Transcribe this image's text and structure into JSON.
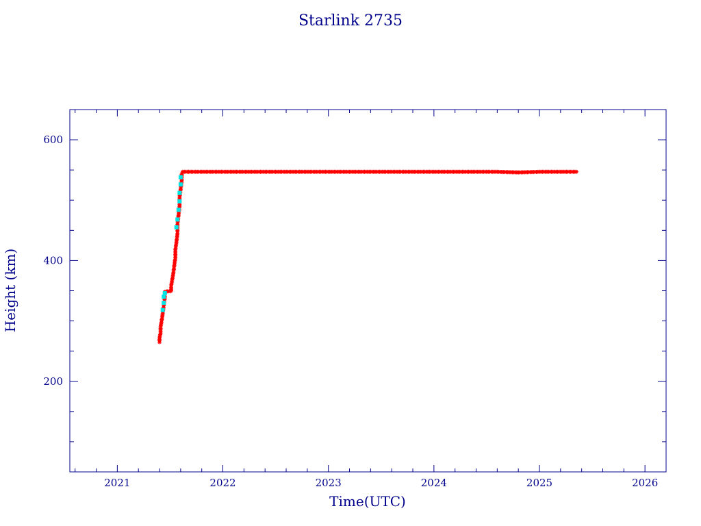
{
  "chart_data": {
    "type": "scatter",
    "title": "Starlink 2735",
    "xlabel": "Time(UTC)",
    "ylabel": "Height (km)",
    "xlim": [
      2020.55,
      2026.2
    ],
    "ylim": [
      50,
      650
    ],
    "x_ticks": [
      "2021",
      "2022",
      "2023",
      "2024",
      "2025",
      "2026"
    ],
    "y_ticks": [
      "200",
      "400",
      "600"
    ],
    "grid": false,
    "legend": "none",
    "colors": {
      "axes": "#00008b",
      "primary": "#ff0000",
      "secondary": "#00e5e5"
    },
    "series": [
      {
        "marker": "star",
        "color": "#ff0000",
        "points": [
          [
            2021.4,
            265
          ],
          [
            2021.4,
            272
          ],
          [
            2021.41,
            280
          ],
          [
            2021.41,
            290
          ],
          [
            2021.42,
            300
          ],
          [
            2021.43,
            312
          ],
          [
            2021.44,
            325
          ],
          [
            2021.45,
            338
          ],
          [
            2021.45,
            348
          ],
          [
            2021.47,
            349
          ],
          [
            2021.48,
            349
          ],
          [
            2021.5,
            349
          ],
          [
            2021.51,
            350
          ],
          [
            2021.51,
            358
          ],
          [
            2021.52,
            368
          ],
          [
            2021.53,
            378
          ],
          [
            2021.54,
            392
          ],
          [
            2021.55,
            405
          ],
          [
            2021.55,
            418
          ],
          [
            2021.56,
            430
          ],
          [
            2021.57,
            445
          ],
          [
            2021.57,
            460
          ],
          [
            2021.58,
            475
          ],
          [
            2021.59,
            490
          ],
          [
            2021.59,
            505
          ],
          [
            2021.6,
            518
          ],
          [
            2021.61,
            532
          ],
          [
            2021.61,
            543
          ],
          [
            2021.62,
            547
          ],
          [
            2021.65,
            547
          ],
          [
            2021.7,
            547
          ],
          [
            2021.8,
            547
          ],
          [
            2021.9,
            547
          ],
          [
            2022.0,
            547
          ],
          [
            2022.2,
            547
          ],
          [
            2022.4,
            547
          ],
          [
            2022.6,
            547
          ],
          [
            2022.8,
            547
          ],
          [
            2023.0,
            547
          ],
          [
            2023.2,
            547
          ],
          [
            2023.4,
            547
          ],
          [
            2023.6,
            547
          ],
          [
            2023.8,
            547
          ],
          [
            2024.0,
            547
          ],
          [
            2024.2,
            547
          ],
          [
            2024.4,
            547
          ],
          [
            2024.6,
            547
          ],
          [
            2024.8,
            546
          ],
          [
            2025.0,
            547
          ],
          [
            2025.2,
            547
          ],
          [
            2025.35,
            547
          ]
        ]
      },
      {
        "marker": "square",
        "color": "#00e5e5",
        "points": [
          [
            2021.43,
            318
          ],
          [
            2021.44,
            330
          ],
          [
            2021.44,
            340
          ],
          [
            2021.45,
            346
          ],
          [
            2021.56,
            455
          ],
          [
            2021.57,
            468
          ],
          [
            2021.58,
            484
          ],
          [
            2021.59,
            498
          ],
          [
            2021.59,
            512
          ],
          [
            2021.6,
            526
          ],
          [
            2021.6,
            538
          ]
        ]
      }
    ]
  }
}
